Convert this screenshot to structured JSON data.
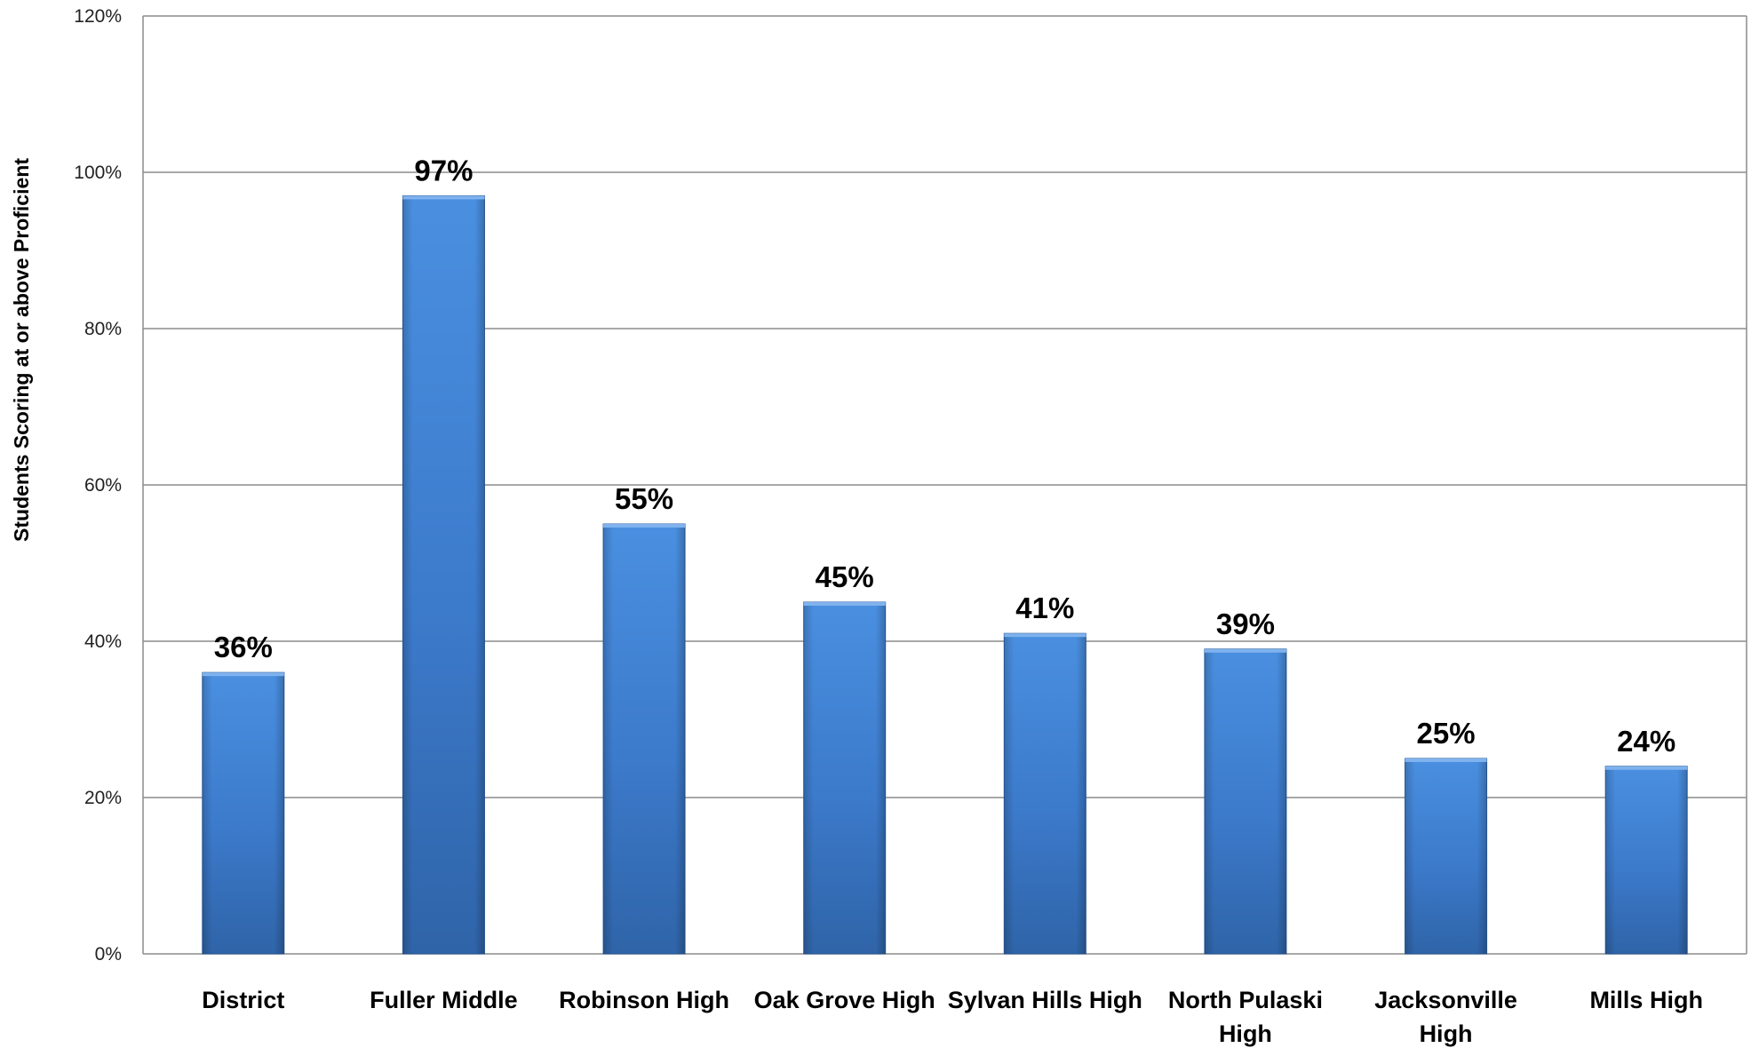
{
  "chart_data": {
    "type": "bar",
    "title": "",
    "xlabel": "",
    "ylabel": "Students Scoring at or above Proficient",
    "categories": [
      [
        "District"
      ],
      [
        "Fuller Middle"
      ],
      [
        "Robinson High"
      ],
      [
        "Oak Grove High"
      ],
      [
        "Sylvan Hills High"
      ],
      [
        "North Pulaski",
        "High"
      ],
      [
        "Jacksonville",
        "High"
      ],
      [
        "Mills High"
      ]
    ],
    "values": [
      36,
      97,
      55,
      45,
      41,
      39,
      25,
      24
    ],
    "value_labels": [
      "36%",
      "97%",
      "55%",
      "45%",
      "41%",
      "39%",
      "25%",
      "24%"
    ],
    "ylim": [
      0,
      120
    ],
    "yticks": [
      0,
      20,
      40,
      60,
      80,
      100,
      120
    ],
    "ytick_labels": [
      "0%",
      "20%",
      "40%",
      "60%",
      "80%",
      "100%",
      "120%"
    ],
    "grid": true,
    "legend": "none",
    "colors": {
      "bar_light": "#4a8fe0",
      "bar_mid": "#3f7fcf",
      "bar_dark": "#2f64a8",
      "bar_edge": "#2a5a98",
      "grid": "#8c8c8c"
    }
  }
}
